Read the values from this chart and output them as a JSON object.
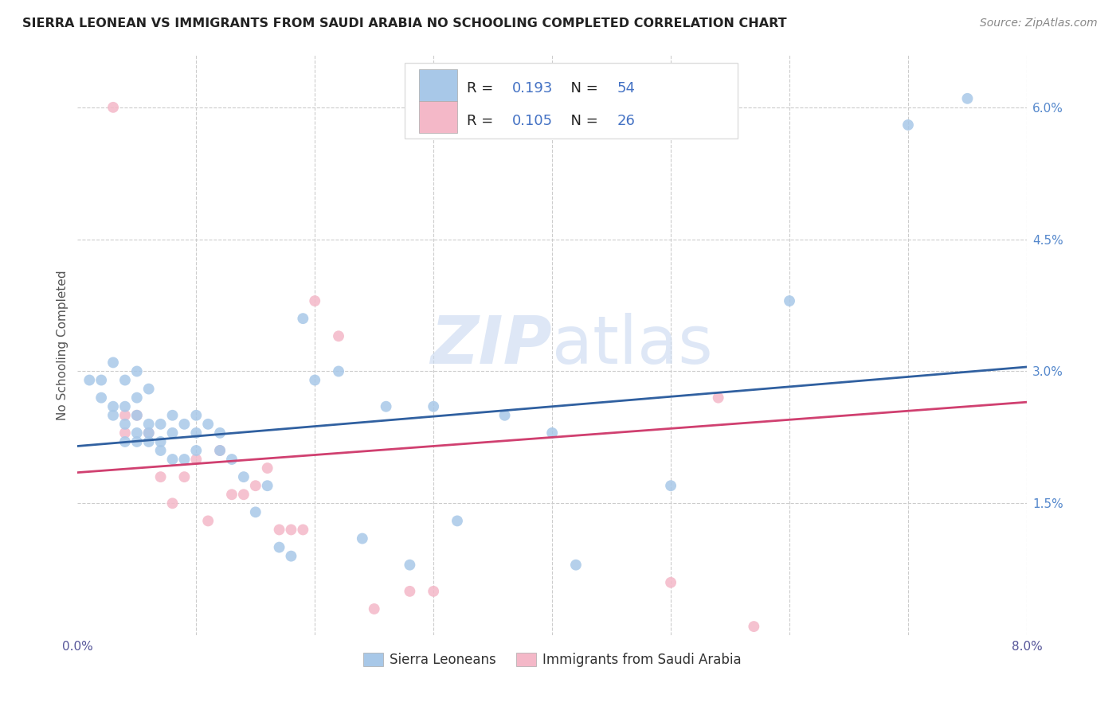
{
  "title": "SIERRA LEONEAN VS IMMIGRANTS FROM SAUDI ARABIA NO SCHOOLING COMPLETED CORRELATION CHART",
  "source": "Source: ZipAtlas.com",
  "ylabel": "No Schooling Completed",
  "legend_bottom": [
    "Sierra Leoneans",
    "Immigrants from Saudi Arabia"
  ],
  "blue_R": "0.193",
  "blue_N": "54",
  "pink_R": "0.105",
  "pink_N": "26",
  "blue_color": "#a8c8e8",
  "pink_color": "#f4b8c8",
  "blue_line_color": "#3060a0",
  "pink_line_color": "#d04070",
  "value_color": "#4472c4",
  "watermark": "ZIPatlas",
  "xlim": [
    0.0,
    0.08
  ],
  "ylim": [
    0.0,
    0.066
  ],
  "xticks": [
    0.0,
    0.01,
    0.02,
    0.03,
    0.04,
    0.05,
    0.06,
    0.07,
    0.08
  ],
  "xticklabels": [
    "0.0%",
    "",
    "",
    "",
    "",
    "",
    "",
    "",
    "8.0%"
  ],
  "yticks_right": [
    0.015,
    0.03,
    0.045,
    0.06
  ],
  "yticklabels_right": [
    "1.5%",
    "3.0%",
    "4.5%",
    "6.0%"
  ],
  "blue_scatter_x": [
    0.001,
    0.002,
    0.002,
    0.003,
    0.003,
    0.003,
    0.004,
    0.004,
    0.004,
    0.004,
    0.005,
    0.005,
    0.005,
    0.005,
    0.005,
    0.006,
    0.006,
    0.006,
    0.006,
    0.007,
    0.007,
    0.007,
    0.008,
    0.008,
    0.008,
    0.009,
    0.009,
    0.01,
    0.01,
    0.01,
    0.011,
    0.012,
    0.012,
    0.013,
    0.014,
    0.015,
    0.016,
    0.017,
    0.018,
    0.019,
    0.02,
    0.022,
    0.024,
    0.026,
    0.028,
    0.03,
    0.032,
    0.036,
    0.04,
    0.042,
    0.05,
    0.06,
    0.07,
    0.075
  ],
  "blue_scatter_y": [
    0.029,
    0.027,
    0.029,
    0.025,
    0.026,
    0.031,
    0.022,
    0.024,
    0.026,
    0.029,
    0.022,
    0.023,
    0.025,
    0.027,
    0.03,
    0.022,
    0.023,
    0.024,
    0.028,
    0.021,
    0.022,
    0.024,
    0.02,
    0.023,
    0.025,
    0.02,
    0.024,
    0.021,
    0.023,
    0.025,
    0.024,
    0.021,
    0.023,
    0.02,
    0.018,
    0.014,
    0.017,
    0.01,
    0.009,
    0.036,
    0.029,
    0.03,
    0.011,
    0.026,
    0.008,
    0.026,
    0.013,
    0.025,
    0.023,
    0.008,
    0.017,
    0.038,
    0.058,
    0.061
  ],
  "pink_scatter_x": [
    0.003,
    0.004,
    0.004,
    0.005,
    0.006,
    0.007,
    0.008,
    0.009,
    0.01,
    0.011,
    0.012,
    0.013,
    0.014,
    0.015,
    0.016,
    0.017,
    0.018,
    0.019,
    0.02,
    0.022,
    0.025,
    0.028,
    0.03,
    0.05,
    0.054,
    0.057
  ],
  "pink_scatter_y": [
    0.06,
    0.023,
    0.025,
    0.025,
    0.023,
    0.018,
    0.015,
    0.018,
    0.02,
    0.013,
    0.021,
    0.016,
    0.016,
    0.017,
    0.019,
    0.012,
    0.012,
    0.012,
    0.038,
    0.034,
    0.003,
    0.005,
    0.005,
    0.006,
    0.027,
    0.001
  ],
  "blue_trendline_x": [
    0.0,
    0.08
  ],
  "blue_trendline_y": [
    0.0215,
    0.0305
  ],
  "pink_trendline_x": [
    0.0,
    0.08
  ],
  "pink_trendline_y": [
    0.0185,
    0.0265
  ]
}
